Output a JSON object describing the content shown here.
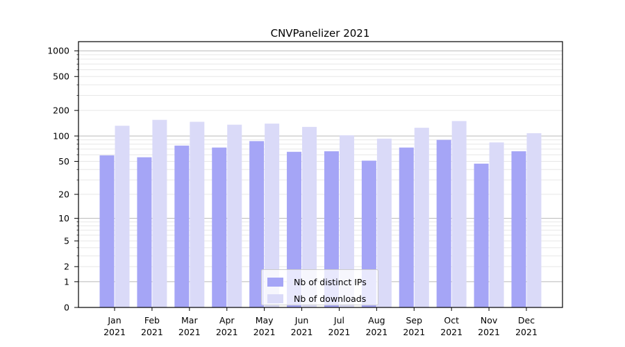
{
  "title": "CNVPanelizer 2021",
  "chart_data": {
    "type": "bar",
    "title": "CNVPanelizer 2021",
    "y_scale": "log10(value+1)",
    "grid": "on",
    "legend_position": "lower center",
    "year": "2021",
    "months": [
      "Jan",
      "Feb",
      "Mar",
      "Apr",
      "May",
      "Jun",
      "Jul",
      "Aug",
      "Sep",
      "Oct",
      "Nov",
      "Dec"
    ],
    "series": [
      {
        "name": "Nb of distinct IPs",
        "color": "#a5a5f6",
        "values": [
          59,
          56,
          77,
          73,
          87,
          65,
          66,
          51,
          73,
          90,
          47,
          66
        ]
      },
      {
        "name": "Nb of downloads",
        "color": "#dadaf8",
        "values": [
          132,
          155,
          147,
          136,
          140,
          128,
          102,
          93,
          125,
          150,
          84,
          108
        ]
      }
    ],
    "y_ticks": [
      0,
      1,
      2,
      5,
      10,
      20,
      50,
      100,
      200,
      500,
      1000
    ],
    "y_major_gridlines": [
      1,
      10,
      100,
      1000
    ],
    "y_minor_gridlines": [
      2,
      3,
      4,
      5,
      6,
      7,
      8,
      9,
      20,
      30,
      40,
      50,
      60,
      70,
      80,
      90,
      200,
      300,
      400,
      500,
      600,
      700,
      800,
      900
    ],
    "ylim": [
      0,
      1280
    ],
    "colors": {
      "major_grid": "#b8b8b8",
      "minor_grid": "#e7e7e7",
      "axis": "#000000",
      "legend_border": "#cccccc",
      "legend_bg": "#ffffff"
    }
  }
}
